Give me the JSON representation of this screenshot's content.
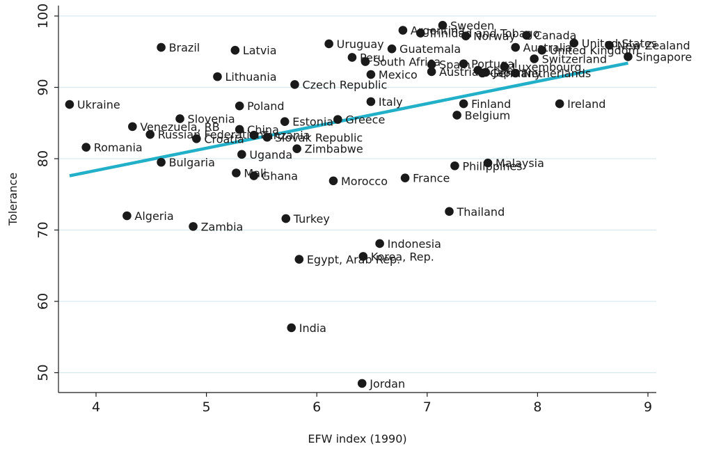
{
  "chart_data": {
    "type": "scatter",
    "xlabel": "EFW index (1990)",
    "ylabel": "Tolerance",
    "xlim": [
      3.7,
      9.1
    ],
    "ylim": [
      47,
      102
    ],
    "xticks": [
      4,
      5,
      6,
      7,
      8,
      9
    ],
    "yticks": [
      50,
      60,
      70,
      80,
      90,
      100
    ],
    "grid": "horizontal",
    "colors": {
      "points": "#1a1a1a",
      "fit_line": "#22b0c8",
      "grid": "#d6e9ec"
    },
    "fit_line": {
      "x": [
        3.76,
        8.82
      ],
      "y": [
        77.6,
        93.4
      ]
    },
    "points": [
      {
        "label": "Ukraine",
        "x": 3.76,
        "y": 87.6
      },
      {
        "label": "Romania",
        "x": 3.91,
        "y": 81.6
      },
      {
        "label": "Algeria",
        "x": 4.28,
        "y": 72.0
      },
      {
        "label": "Venezuela, RB",
        "x": 4.33,
        "y": 84.5
      },
      {
        "label": "Russian Federation",
        "x": 4.49,
        "y": 83.4
      },
      {
        "label": "Brazil",
        "x": 4.59,
        "y": 95.6
      },
      {
        "label": "Bulgaria",
        "x": 4.59,
        "y": 79.5
      },
      {
        "label": "Slovenia",
        "x": 4.76,
        "y": 85.6
      },
      {
        "label": "Zambia",
        "x": 4.88,
        "y": 70.5
      },
      {
        "label": "Croatia",
        "x": 4.91,
        "y": 82.8
      },
      {
        "label": "Lithuania",
        "x": 5.1,
        "y": 91.5
      },
      {
        "label": "Latvia",
        "x": 5.26,
        "y": 95.2
      },
      {
        "label": "Mali",
        "x": 5.27,
        "y": 78.0
      },
      {
        "label": "China",
        "x": 5.3,
        "y": 84.1
      },
      {
        "label": "Poland",
        "x": 5.3,
        "y": 87.4
      },
      {
        "label": "Uganda",
        "x": 5.32,
        "y": 80.6
      },
      {
        "label": "Tanzania",
        "x": 5.43,
        "y": 83.3
      },
      {
        "label": "Ghana",
        "x": 5.43,
        "y": 77.6
      },
      {
        "label": "Slovak Republic",
        "x": 5.55,
        "y": 83.0
      },
      {
        "label": "Estonia",
        "x": 5.71,
        "y": 85.2
      },
      {
        "label": "Turkey",
        "x": 5.72,
        "y": 71.6
      },
      {
        "label": "India",
        "x": 5.77,
        "y": 56.3
      },
      {
        "label": "Czech Republic",
        "x": 5.8,
        "y": 90.4
      },
      {
        "label": "Zimbabwe",
        "x": 5.82,
        "y": 81.4
      },
      {
        "label": "Egypt, Arab Rep.",
        "x": 5.84,
        "y": 65.9
      },
      {
        "label": "Uruguay",
        "x": 6.11,
        "y": 96.1
      },
      {
        "label": "Morocco",
        "x": 6.15,
        "y": 76.9
      },
      {
        "label": "Greece",
        "x": 6.19,
        "y": 85.5
      },
      {
        "label": "Peru",
        "x": 6.32,
        "y": 94.2
      },
      {
        "label": "Jordan",
        "x": 6.41,
        "y": 48.5
      },
      {
        "label": "Korea, Rep.",
        "x": 6.42,
        "y": 66.3
      },
      {
        "label": "South Africa",
        "x": 6.44,
        "y": 93.6
      },
      {
        "label": "Mexico",
        "x": 6.49,
        "y": 91.8
      },
      {
        "label": "Italy",
        "x": 6.49,
        "y": 88.0
      },
      {
        "label": "Indonesia",
        "x": 6.57,
        "y": 68.1
      },
      {
        "label": "Guatemala",
        "x": 6.68,
        "y": 95.4
      },
      {
        "label": "Argentina",
        "x": 6.78,
        "y": 98.0
      },
      {
        "label": "France",
        "x": 6.8,
        "y": 77.3
      },
      {
        "label": "Trinidad and Tobago",
        "x": 6.94,
        "y": 97.6
      },
      {
        "label": "Spain",
        "x": 7.04,
        "y": 93.2
      },
      {
        "label": "Austria",
        "x": 7.04,
        "y": 92.2
      },
      {
        "label": "Sweden",
        "x": 7.14,
        "y": 98.7
      },
      {
        "label": "Thailand",
        "x": 7.2,
        "y": 72.6
      },
      {
        "label": "Philippines",
        "x": 7.25,
        "y": 79.0
      },
      {
        "label": "Belgium",
        "x": 7.27,
        "y": 86.1
      },
      {
        "label": "Finland",
        "x": 7.33,
        "y": 87.7
      },
      {
        "label": "Portugal",
        "x": 7.33,
        "y": 93.3
      },
      {
        "label": "Norway",
        "x": 7.35,
        "y": 97.2
      },
      {
        "label": "Chile",
        "x": 7.46,
        "y": 92.4
      },
      {
        "label": "Germany",
        "x": 7.5,
        "y": 92.0
      },
      {
        "label": "Japan",
        "x": 7.53,
        "y": 92.1
      },
      {
        "label": "Malaysia",
        "x": 7.55,
        "y": 79.4
      },
      {
        "label": "Luxembourg",
        "x": 7.7,
        "y": 92.9
      },
      {
        "label": "Netherlands",
        "x": 7.8,
        "y": 92.0
      },
      {
        "label": "Australia",
        "x": 7.8,
        "y": 95.6
      },
      {
        "label": "Canada",
        "x": 7.9,
        "y": 97.3
      },
      {
        "label": "Switzerland",
        "x": 7.97,
        "y": 94.0
      },
      {
        "label": "United Kingdom",
        "x": 8.04,
        "y": 95.2
      },
      {
        "label": "Ireland",
        "x": 8.2,
        "y": 87.7
      },
      {
        "label": "United States",
        "x": 8.33,
        "y": 96.2
      },
      {
        "label": "New Zealand",
        "x": 8.65,
        "y": 95.9
      },
      {
        "label": "Singapore",
        "x": 8.82,
        "y": 94.3
      }
    ]
  }
}
